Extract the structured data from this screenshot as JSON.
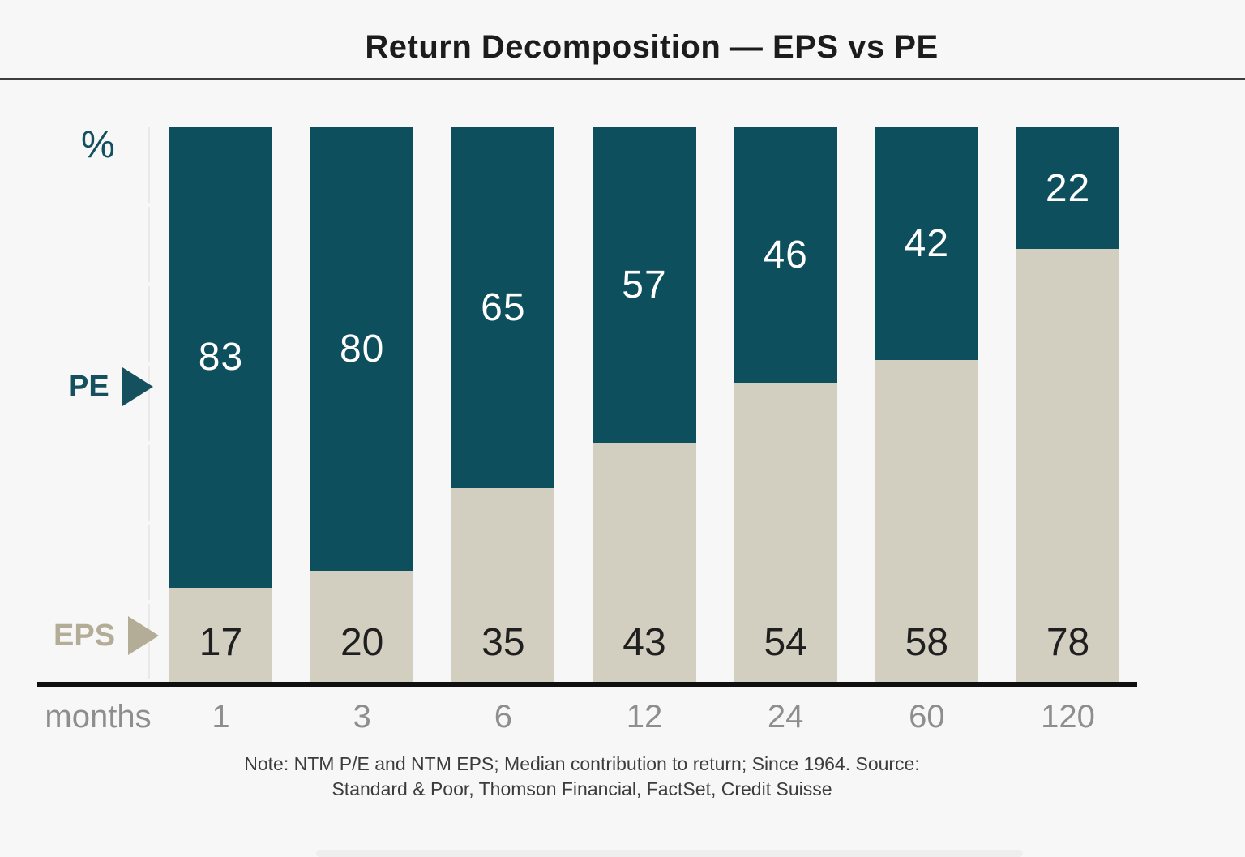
{
  "header": {
    "title": "Return Decomposition — EPS vs PE"
  },
  "labels": {
    "y_unit": "%",
    "x_axis": "months"
  },
  "legend": {
    "pe_label": "PE",
    "eps_label": "EPS",
    "pe_color": "#15505f",
    "eps_color": "#b3ac97"
  },
  "chart_data": {
    "type": "bar",
    "stacked": true,
    "title": "Return Decomposition — EPS vs PE",
    "xlabel": "months",
    "ylabel": "%",
    "ylim": [
      0,
      100
    ],
    "grid": false,
    "legend_position": "left",
    "categories": [
      "1",
      "3",
      "6",
      "12",
      "24",
      "60",
      "120"
    ],
    "series": [
      {
        "name": "EPS",
        "color": "#d2cec0",
        "label_color": "#1f1f1f",
        "values": [
          17,
          20,
          35,
          43,
          54,
          58,
          78
        ]
      },
      {
        "name": "PE",
        "color": "#0e4f5e",
        "label_color": "#ffffff",
        "values": [
          83,
          80,
          65,
          57,
          46,
          42,
          22
        ]
      }
    ]
  },
  "note": {
    "line1": "Note: NTM P/E and NTM EPS; Median contribution to return; Since 1964. Source:",
    "line2": "Standard & Poor, Thomson Financial, FactSet, Credit Suisse"
  },
  "colors": {
    "background": "#f7f7f7",
    "axis": "#101010",
    "divider": "#3d3d3d",
    "month_text": "#8e8e8e",
    "note_text": "#3c3c3c",
    "title_text": "#1c1c1c"
  }
}
